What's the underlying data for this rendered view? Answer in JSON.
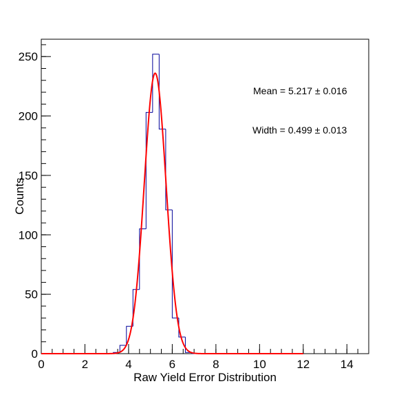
{
  "chart_data": {
    "type": "histogram",
    "x_label": "Raw Yield Error Distribution",
    "y_label": "Counts",
    "bins": [
      0,
      0.3,
      0.6,
      0.9,
      1.2,
      1.5,
      1.8,
      2.1,
      2.4,
      2.7,
      3,
      3.3,
      3.6,
      3.9,
      4.2,
      4.5,
      4.8,
      5.1,
      5.4,
      5.7,
      6,
      6.3,
      6.6,
      6.9,
      7.2,
      7.5,
      7.8,
      8.1,
      8.4,
      8.7,
      9,
      9.3,
      9.6,
      9.9,
      10.2,
      10.5,
      10.8,
      11.1,
      11.4,
      11.7,
      12
    ],
    "values": [
      0,
      0,
      0,
      0,
      0,
      0,
      0,
      0,
      0,
      0,
      0,
      1,
      7,
      23,
      54,
      105,
      203,
      252,
      189,
      121,
      30,
      14,
      1,
      0,
      0,
      0,
      0,
      0,
      0,
      0,
      0,
      0,
      0,
      0,
      0,
      0,
      0,
      0,
      0,
      0
    ],
    "color": "#000099",
    "fit": {
      "type": "gaussian",
      "mean": 5.217,
      "sigma": 0.499,
      "peak": 236,
      "xlim": [
        0,
        12
      ],
      "color": "#ff0000"
    },
    "annotations": [
      "Mean = 5.217 ± 0.016",
      "Width = 0.499 ± 0.013"
    ],
    "xlim": [
      0,
      15
    ],
    "xticks": [
      0,
      2,
      4,
      6,
      8,
      10,
      12,
      14
    ],
    "x_minor_step": 0.5,
    "ylim": [
      0,
      264.6
    ],
    "yticks": [
      0,
      50,
      100,
      150,
      200,
      250
    ],
    "y_minor_step": 10
  }
}
